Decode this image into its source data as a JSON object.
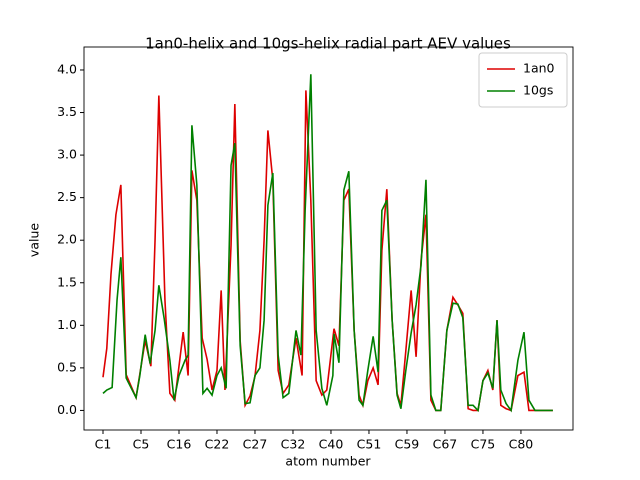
{
  "chart_data": {
    "type": "line",
    "title": "1an0-helix and 10gs-helix radial part AEV values",
    "xlabel": "atom number",
    "ylabel": "value",
    "xlim": [
      -5,
      123.7
    ],
    "ylim": [
      -0.23,
      4.27
    ],
    "xticks": [
      {
        "value": 0,
        "label": "C1"
      },
      {
        "value": 10,
        "label": "C5"
      },
      {
        "value": 20,
        "label": "C16"
      },
      {
        "value": 30,
        "label": "C22"
      },
      {
        "value": 40,
        "label": "C27"
      },
      {
        "value": 50,
        "label": "C32"
      },
      {
        "value": 60,
        "label": "C40"
      },
      {
        "value": 70,
        "label": "C51"
      },
      {
        "value": 80,
        "label": "C59"
      },
      {
        "value": 90,
        "label": "C67"
      },
      {
        "value": 100,
        "label": "C75"
      },
      {
        "value": 110,
        "label": "C80"
      }
    ],
    "yticks": [
      {
        "value": 0,
        "label": "0.0"
      },
      {
        "value": 0.5,
        "label": "0.5"
      },
      {
        "value": 1,
        "label": "1.0"
      },
      {
        "value": 1.5,
        "label": "1.5"
      },
      {
        "value": 2,
        "label": "2.0"
      },
      {
        "value": 2.5,
        "label": "2.5"
      },
      {
        "value": 3,
        "label": "3.0"
      },
      {
        "value": 3.5,
        "label": "3.5"
      },
      {
        "value": 4,
        "label": "4.0"
      }
    ],
    "legend": "upper right",
    "series": [
      {
        "name": "1an0",
        "color": "#dd0000",
        "x": [
          0,
          1,
          2.1,
          3.4,
          4.7,
          6.1,
          8.7,
          11.1,
          12.6,
          13.7,
          14.7,
          16.3,
          17.6,
          18.9,
          19.7,
          21.1,
          22.4,
          23.4,
          24.7,
          26.1,
          27.4,
          28.7,
          30,
          31.1,
          32.1,
          33.7,
          34.7,
          36.1,
          37.4,
          38.7,
          40,
          41.3,
          42.4,
          43.4,
          44.7,
          46.1,
          47.4,
          48.9,
          50.8,
          52.4,
          53.4,
          54.7,
          56.1,
          57.6,
          58.9,
          60.8,
          62.1,
          63.4,
          64.7,
          66.1,
          67.4,
          68.4,
          69.7,
          71.1,
          72.4,
          73.4,
          74.7,
          76.1,
          77.4,
          78.4,
          79.7,
          81.1,
          82.4,
          83.7,
          85,
          86.3,
          87.6,
          88.9,
          90.5,
          92.1,
          93.4,
          94.7,
          96.1,
          97.4,
          98.7,
          100,
          101.3,
          102.6,
          103.7,
          104.7,
          106.1,
          107.4,
          109.2,
          110.8,
          112.1,
          113.7,
          118.4
        ],
        "values": [
          0.39,
          0.73,
          1.6,
          2.3,
          2.65,
          0.42,
          0.15,
          0.82,
          0.52,
          2.0,
          3.7,
          1.3,
          0.2,
          0.12,
          0.41,
          0.92,
          0.41,
          2.82,
          2.47,
          0.85,
          0.6,
          0.24,
          0.47,
          1.41,
          0.24,
          1.94,
          3.6,
          0.82,
          0.06,
          0.17,
          0.4,
          0.94,
          2.0,
          3.29,
          2.7,
          0.47,
          0.2,
          0.3,
          0.85,
          0.41,
          3.76,
          2.47,
          0.35,
          0.18,
          0.24,
          0.96,
          0.76,
          2.47,
          2.6,
          0.94,
          0.18,
          0.06,
          0.35,
          0.5,
          0.3,
          1.88,
          2.6,
          1.06,
          0.2,
          0.06,
          0.7,
          1.41,
          0.63,
          1.76,
          2.3,
          0.12,
          0,
          0,
          0.94,
          1.33,
          1.24,
          1.14,
          0.02,
          0,
          0,
          0.35,
          0.47,
          0.24,
          1.06,
          0.06,
          0.02,
          0,
          0.41,
          0.45,
          0,
          0,
          0
        ]
      },
      {
        "name": "10gs",
        "color": "#008000",
        "x": [
          0,
          1,
          2.4,
          3.7,
          4.7,
          6.1,
          8.7,
          9.7,
          11.1,
          12.4,
          13.7,
          14.7,
          16.1,
          17.6,
          18.7,
          20,
          21.6,
          22.4,
          23.4,
          24.7,
          26.3,
          27.4,
          28.7,
          30,
          31.1,
          32.4,
          33.7,
          34.7,
          36.1,
          37.4,
          38.7,
          40,
          41.3,
          42.4,
          43.4,
          44.7,
          46.1,
          47.4,
          48.9,
          50.8,
          52.1,
          53.2,
          54.7,
          56.1,
          57.6,
          58.9,
          60.5,
          60.8,
          62.1,
          63.4,
          64.7,
          66.1,
          67.4,
          68.4,
          69.7,
          71.1,
          72.4,
          73.4,
          74.7,
          76.1,
          77.4,
          78.4,
          79.7,
          81.1,
          82.4,
          83.7,
          85,
          86.3,
          87.6,
          88.9,
          90.5,
          92.1,
          93.4,
          94.7,
          96.1,
          97.4,
          98.7,
          100,
          101.3,
          102.6,
          103.7,
          104.7,
          106.1,
          107.4,
          109.2,
          110.8,
          112.1,
          113.7,
          118.4
        ],
        "values": [
          0.2,
          0.24,
          0.27,
          1.3,
          1.8,
          0.38,
          0.15,
          0.41,
          0.89,
          0.55,
          0.94,
          1.47,
          1.08,
          0.59,
          0.12,
          0.41,
          0.59,
          0.65,
          3.35,
          2.65,
          0.2,
          0.26,
          0.18,
          0.41,
          0.5,
          0.26,
          2.88,
          3.14,
          0.76,
          0.08,
          0.09,
          0.41,
          0.5,
          1.06,
          2.41,
          2.79,
          0.65,
          0.15,
          0.2,
          0.94,
          0.65,
          2.35,
          3.95,
          0.94,
          0.26,
          0.06,
          0.41,
          0.9,
          0.56,
          2.59,
          2.81,
          0.94,
          0.12,
          0.06,
          0.47,
          0.87,
          0.45,
          2.35,
          2.47,
          1.06,
          0.18,
          0.02,
          0.47,
          0.91,
          1.24,
          1.7,
          2.71,
          0.18,
          0,
          0,
          0.94,
          1.26,
          1.25,
          1.09,
          0.06,
          0.06,
          0,
          0.35,
          0.44,
          0.26,
          1.06,
          0.24,
          0.08,
          0,
          0.59,
          0.92,
          0.12,
          0,
          0
        ]
      }
    ]
  }
}
